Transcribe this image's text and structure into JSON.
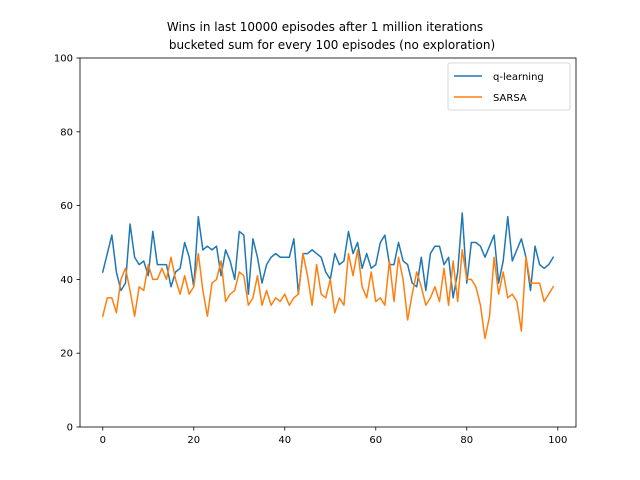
{
  "chart_data": {
    "type": "line",
    "title": "Wins in last 10000 episodes after 1 million iterations",
    "subtitle": "bucketed sum for every 100 episodes (no exploration)",
    "xlabel": "",
    "ylabel": "",
    "xlim": [
      -5,
      104
    ],
    "ylim": [
      0,
      100
    ],
    "xticks": [
      0,
      20,
      40,
      60,
      80,
      100
    ],
    "yticks": [
      0,
      20,
      40,
      60,
      80,
      100
    ],
    "grid": false,
    "legend_position": "top-right",
    "series": [
      {
        "name": "q-learning",
        "color": "#1f77b4",
        "values": [
          42,
          47,
          52,
          42,
          37,
          39,
          55,
          46,
          44,
          45,
          41,
          53,
          44,
          44,
          44,
          38,
          42,
          43,
          50,
          46,
          38,
          57,
          48,
          49,
          48,
          49,
          41,
          48,
          45,
          40,
          53,
          52,
          36,
          51,
          46,
          39,
          44,
          46,
          47,
          46,
          46,
          46,
          51,
          36,
          47,
          47,
          48,
          47,
          46,
          42,
          40,
          47,
          44,
          45,
          53,
          47,
          50,
          43,
          47,
          43,
          44,
          50,
          52,
          44,
          44,
          50,
          45,
          44,
          39,
          38,
          46,
          37,
          47,
          49,
          49,
          44,
          46,
          35,
          42,
          58,
          39,
          50,
          50,
          49,
          46,
          49,
          52,
          39,
          45,
          57,
          45,
          48,
          51,
          46,
          37,
          49,
          44,
          43,
          44,
          46
        ]
      },
      {
        "name": "SARSA",
        "color": "#ff7f0e",
        "values": [
          30,
          35,
          35,
          31,
          40,
          43,
          37,
          30,
          38,
          37,
          44,
          40,
          40,
          43,
          40,
          46,
          40,
          36,
          41,
          36,
          38,
          47,
          37,
          30,
          39,
          40,
          45,
          34,
          36,
          37,
          42,
          41,
          33,
          35,
          41,
          33,
          37,
          33,
          35,
          34,
          36,
          33,
          35,
          36,
          47,
          41,
          33,
          44,
          36,
          35,
          40,
          31,
          35,
          33,
          47,
          41,
          48,
          38,
          35,
          42,
          34,
          35,
          33,
          45,
          34,
          46,
          40,
          29,
          36,
          42,
          38,
          33,
          35,
          38,
          34,
          43,
          33,
          45,
          34,
          48,
          40,
          40,
          38,
          33,
          24,
          30,
          46,
          36,
          42,
          35,
          36,
          34,
          26,
          46,
          39,
          39,
          39,
          34,
          36,
          38
        ]
      }
    ]
  }
}
